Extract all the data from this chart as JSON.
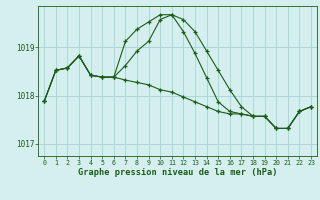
{
  "title": "Graphe pression niveau de la mer (hPa)",
  "background_color": "#d5efee",
  "grid_color": "#aad8d8",
  "line_color": "#1a5c1a",
  "xlim": [
    -0.5,
    23.5
  ],
  "ylim": [
    1016.75,
    1019.85
  ],
  "yticks": [
    1017,
    1018,
    1019
  ],
  "xtick_labels": [
    "0",
    "1",
    "2",
    "3",
    "4",
    "5",
    "6",
    "7",
    "8",
    "9",
    "10",
    "11",
    "12",
    "13",
    "14",
    "15",
    "16",
    "17",
    "18",
    "19",
    "20",
    "21",
    "22",
    "23"
  ],
  "series": [
    [
      1017.88,
      1018.52,
      1018.57,
      1018.82,
      1018.42,
      1018.38,
      1018.38,
      1018.62,
      1018.92,
      1019.12,
      1019.57,
      1019.67,
      1019.57,
      1019.32,
      1018.92,
      1018.52,
      1018.12,
      1017.77,
      1017.57,
      1017.57,
      1017.32,
      1017.32,
      1017.67,
      1017.77
    ],
    [
      1017.88,
      1018.52,
      1018.57,
      1018.82,
      1018.42,
      1018.38,
      1018.38,
      1019.12,
      1019.37,
      1019.52,
      1019.67,
      1019.67,
      1019.32,
      1018.87,
      1018.37,
      1017.87,
      1017.67,
      1017.62,
      1017.57,
      1017.57,
      1017.32,
      1017.32,
      1017.67,
      1017.77
    ],
    [
      1017.88,
      1018.52,
      1018.57,
      1018.82,
      1018.42,
      1018.38,
      1018.38,
      1018.32,
      1018.27,
      1018.22,
      1018.12,
      1018.07,
      1017.97,
      1017.87,
      1017.77,
      1017.67,
      1017.62,
      1017.62,
      1017.57,
      1017.57,
      1017.32,
      1017.32,
      1017.67,
      1017.77
    ]
  ]
}
